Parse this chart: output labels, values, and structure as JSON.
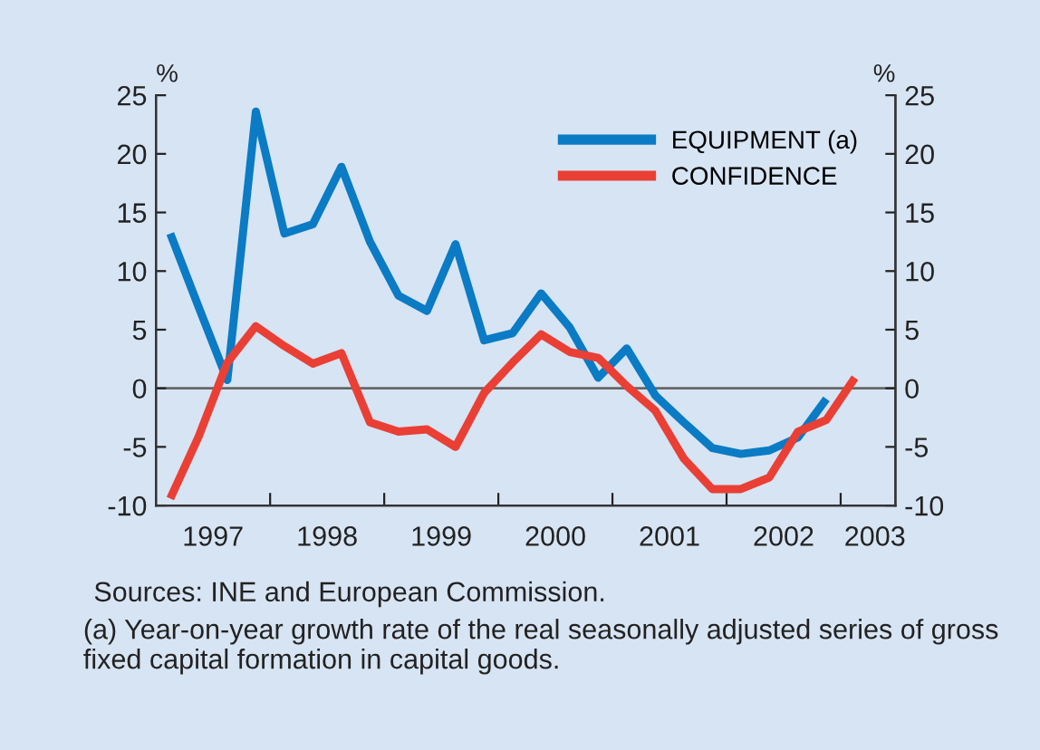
{
  "chart_data": {
    "type": "line",
    "ylabel": "%",
    "y2label": "%",
    "x": [
      1997.125,
      1997.375,
      1997.625,
      1997.875,
      1998.125,
      1998.375,
      1998.625,
      1998.875,
      1999.125,
      1999.375,
      1999.625,
      1999.875,
      2000.125,
      2000.375,
      2000.625,
      2000.875,
      2001.125,
      2001.375,
      2001.625,
      2001.875,
      2002.125,
      2002.375,
      2002.625,
      2002.875,
      2003.125
    ],
    "series": [
      {
        "name": "EQUIPMENT (a)",
        "color": "#0a7bc4",
        "values": [
          13.2,
          6.9,
          0.7,
          23.6,
          13.2,
          14.0,
          18.9,
          12.5,
          7.9,
          6.6,
          12.3,
          4.1,
          4.7,
          8.1,
          5.2,
          0.9,
          3.4,
          -0.6,
          -2.9,
          -5.1,
          -5.6,
          -5.3,
          -4.2,
          -0.9,
          null
        ]
      },
      {
        "name": "CONFIDENCE",
        "color": "#ea3f35",
        "values": [
          -9.4,
          -4.1,
          2.2,
          5.3,
          3.6,
          2.1,
          3.0,
          -2.9,
          -3.7,
          -3.5,
          -5.0,
          -0.4,
          2.2,
          4.6,
          3.1,
          2.6,
          0.2,
          -1.9,
          -6.0,
          -8.6,
          -8.6,
          -7.6,
          -3.7,
          -2.7,
          0.9
        ]
      }
    ],
    "xlim": [
      1997,
      2003.48
    ],
    "xticks": [
      {
        "value": 1997.5,
        "label": "1997"
      },
      {
        "value": 1998,
        "label": null
      },
      {
        "value": 1998.5,
        "label": "1998"
      },
      {
        "value": 1999,
        "label": null
      },
      {
        "value": 1999.5,
        "label": "1999"
      },
      {
        "value": 2000,
        "label": null
      },
      {
        "value": 2000.5,
        "label": "2000"
      },
      {
        "value": 2001,
        "label": null
      },
      {
        "value": 2001.5,
        "label": "2001"
      },
      {
        "value": 2002,
        "label": null
      },
      {
        "value": 2002.5,
        "label": "2002"
      },
      {
        "value": 2003,
        "label": null
      },
      {
        "value": 2003.3,
        "label": "2003"
      }
    ],
    "ylim": [
      -10,
      25
    ],
    "yticks": [
      -10,
      -5,
      0,
      5,
      10,
      15,
      20,
      25
    ],
    "y2lim": [
      -10,
      25
    ],
    "y2ticks": [
      -10,
      -5,
      0,
      5,
      10,
      15,
      20,
      25
    ],
    "ref_lines": [
      {
        "axis": "y",
        "value": 0,
        "color": "#666666"
      }
    ],
    "legend": "top right",
    "grid": false,
    "marker": "none",
    "line_style": "solid",
    "annotations": [
      "Sources: INE and European Commission.",
      "(a) Year-on-year growth rate of the real seasonally adjusted series of gross fixed capital formation in capital goods."
    ]
  }
}
